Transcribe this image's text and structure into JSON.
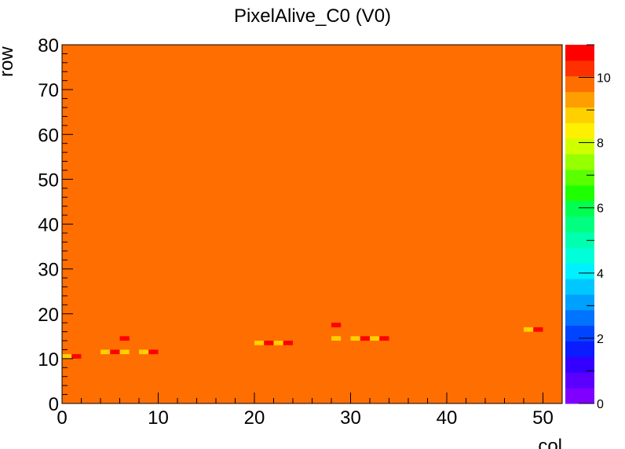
{
  "chart_data": {
    "type": "heatmap",
    "title": "PixelAlive_C0 (V0)",
    "xlabel": "col",
    "ylabel": "row",
    "xlim": [
      0,
      52
    ],
    "ylim": [
      0,
      80
    ],
    "x_ticks": [
      "0",
      "10",
      "20",
      "30",
      "40",
      "50"
    ],
    "y_ticks": [
      "0",
      "10",
      "20",
      "30",
      "40",
      "50",
      "60",
      "70",
      "80"
    ],
    "z_range": [
      0,
      11
    ],
    "z_ticks": [
      "0",
      "2",
      "4",
      "6",
      "8",
      "10"
    ],
    "background_value": 10,
    "cells": [
      {
        "col": 0,
        "row": 10,
        "value": 9
      },
      {
        "col": 1,
        "row": 10,
        "value": 11
      },
      {
        "col": 4,
        "row": 11,
        "value": 9
      },
      {
        "col": 5,
        "row": 11,
        "value": 11
      },
      {
        "col": 6,
        "row": 11,
        "value": 9
      },
      {
        "col": 6,
        "row": 14,
        "value": 11
      },
      {
        "col": 8,
        "row": 11,
        "value": 9
      },
      {
        "col": 9,
        "row": 11,
        "value": 11
      },
      {
        "col": 20,
        "row": 13,
        "value": 9
      },
      {
        "col": 21,
        "row": 13,
        "value": 11
      },
      {
        "col": 22,
        "row": 13,
        "value": 9
      },
      {
        "col": 23,
        "row": 13,
        "value": 11
      },
      {
        "col": 28,
        "row": 14,
        "value": 9
      },
      {
        "col": 28,
        "row": 17,
        "value": 11
      },
      {
        "col": 30,
        "row": 14,
        "value": 9
      },
      {
        "col": 31,
        "row": 14,
        "value": 11
      },
      {
        "col": 32,
        "row": 14,
        "value": 9
      },
      {
        "col": 33,
        "row": 14,
        "value": 11
      },
      {
        "col": 48,
        "row": 16,
        "value": 9
      },
      {
        "col": 49,
        "row": 16,
        "value": 11
      }
    ],
    "palette": [
      "#7f00ff",
      "#5a00ff",
      "#3300ff",
      "#0b1cff",
      "#0044ff",
      "#0073ff",
      "#00a0ff",
      "#00c8ff",
      "#00f0ff",
      "#00ffd8",
      "#00ffae",
      "#00ff80",
      "#00ff50",
      "#1eff00",
      "#5aff00",
      "#96ff00",
      "#d0ff00",
      "#ffef00",
      "#ffd000",
      "#ff9e00",
      "#ff6e00",
      "#ff3000",
      "#ff0000"
    ]
  }
}
